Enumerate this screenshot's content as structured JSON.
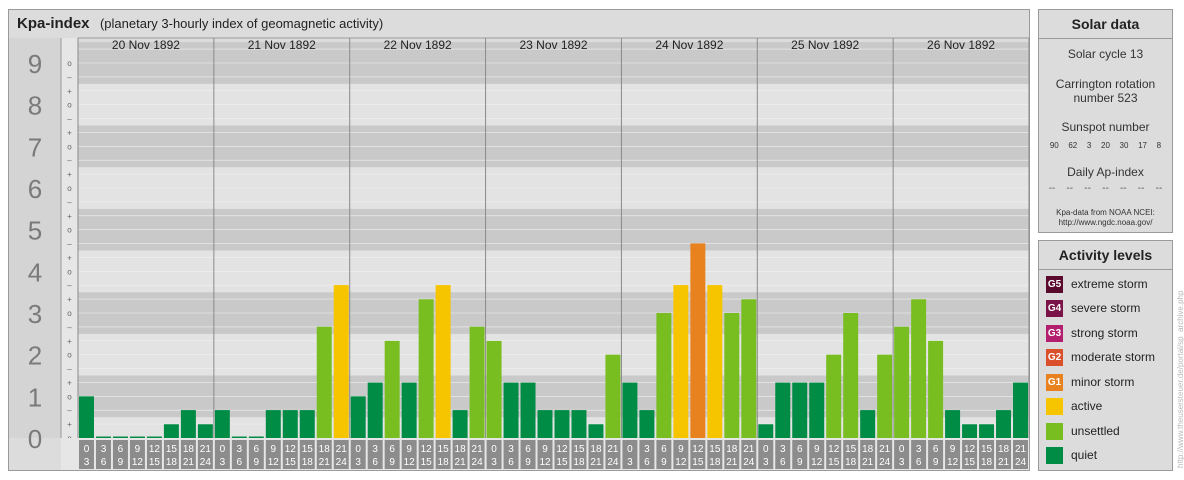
{
  "title": {
    "main": "Kpa-index",
    "sub": "(planetary 3-hourly index of geomagnetic activity)"
  },
  "solar": {
    "heading": "Solar data",
    "cycle": "Solar cycle 13",
    "carrington_line1": "Carrington rotation",
    "carrington_line2": "number 523",
    "sunspot_label": "Sunspot number",
    "sunspot_values": [
      "90",
      "62",
      "3",
      "20",
      "30",
      "17",
      "8"
    ],
    "ap_label": "Daily Ap-index",
    "ap_values": [
      "--",
      "--",
      "--",
      "--",
      "--",
      "--",
      "--"
    ],
    "source_line1": "Kpa-data from NOAA NCEI:",
    "source_line2": "http://www.ngdc.noaa.gov/"
  },
  "levels": {
    "heading": "Activity levels",
    "items": [
      {
        "code": "G5",
        "label": "extreme storm",
        "color": "#5a0a2c"
      },
      {
        "code": "G4",
        "label": "severe storm",
        "color": "#7a1448"
      },
      {
        "code": "G3",
        "label": "strong storm",
        "color": "#b31e6e"
      },
      {
        "code": "G2",
        "label": "moderate storm",
        "color": "#d9502a"
      },
      {
        "code": "G1",
        "label": "minor storm",
        "color": "#e8821f"
      },
      {
        "code": "",
        "label": "active",
        "color": "#f7c400"
      },
      {
        "code": "",
        "label": "unsettled",
        "color": "#78be20"
      },
      {
        "code": "",
        "label": "quiet",
        "color": "#008c45"
      }
    ]
  },
  "credit": "http://www.theusersteuer.de/portal/sp_archive.php",
  "chart_data": {
    "type": "bar",
    "title": "Kpa-index",
    "subtitle": "(planetary 3-hourly index of geomagnetic activity)",
    "days": [
      "20 Nov 1892",
      "21 Nov 1892",
      "22 Nov 1892",
      "23 Nov 1892",
      "24 Nov 1892",
      "25 Nov 1892",
      "26 Nov 1892"
    ],
    "interval_top": [
      "0",
      "3",
      "6",
      "9",
      "12",
      "15",
      "18",
      "21"
    ],
    "interval_bottom": [
      "3",
      "6",
      "9",
      "12",
      "15",
      "18",
      "21",
      "24"
    ],
    "y_ticks": [
      "0",
      "1",
      "2",
      "3",
      "4",
      "5",
      "6",
      "7",
      "8",
      "9"
    ],
    "y_sub_ticks": [
      "o",
      "+",
      "–"
    ],
    "ylim": [
      0,
      9
    ],
    "values": [
      1.0,
      0.0,
      0.0,
      0.0,
      0.0,
      0.33,
      0.67,
      0.33,
      0.67,
      0.0,
      0.0,
      0.67,
      0.67,
      0.67,
      2.67,
      3.67,
      1.0,
      1.33,
      2.33,
      1.33,
      3.33,
      3.67,
      0.67,
      2.67,
      2.33,
      1.33,
      1.33,
      0.67,
      0.67,
      0.67,
      0.33,
      2.0,
      1.33,
      0.67,
      3.0,
      3.67,
      4.67,
      3.67,
      3.0,
      3.33,
      0.33,
      1.33,
      1.33,
      1.33,
      2.0,
      3.0,
      0.67,
      2.0,
      2.67,
      3.33,
      2.33,
      0.67,
      0.33,
      0.33,
      0.67,
      1.33
    ],
    "level_colors": {
      "quiet": "#008c45",
      "unsettled": "#78be20",
      "active": "#f7c400",
      "minor": "#e8821f",
      "moderate": "#d9502a"
    },
    "grid": true
  }
}
